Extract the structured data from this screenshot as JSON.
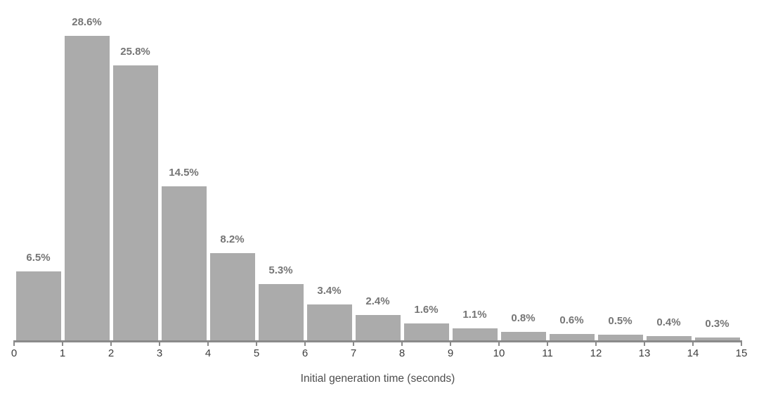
{
  "chart_data": {
    "type": "bar",
    "subtype": "histogram",
    "title": "",
    "xlabel": "Initial generation time (seconds)",
    "ylabel": "",
    "bin_edges": [
      0,
      1,
      2,
      3,
      4,
      5,
      6,
      7,
      8,
      9,
      10,
      11,
      12,
      13,
      14,
      15
    ],
    "categories": [
      "0-1",
      "1-2",
      "2-3",
      "3-4",
      "4-5",
      "5-6",
      "6-7",
      "7-8",
      "8-9",
      "9-10",
      "10-11",
      "11-12",
      "12-13",
      "13-14",
      "14-15"
    ],
    "values": [
      6.5,
      28.6,
      25.8,
      14.5,
      8.2,
      5.3,
      3.4,
      2.4,
      1.6,
      1.1,
      0.8,
      0.6,
      0.5,
      0.4,
      0.3
    ],
    "value_labels": [
      "6.5%",
      "28.6%",
      "25.8%",
      "14.5%",
      "8.2%",
      "5.3%",
      "3.4%",
      "2.4%",
      "1.6%",
      "1.1%",
      "0.8%",
      "0.6%",
      "0.5%",
      "0.4%",
      "0.3%"
    ],
    "x_tick_labels": [
      "0",
      "1",
      "2",
      "3",
      "4",
      "5",
      "6",
      "7",
      "8",
      "9",
      "10",
      "11",
      "12",
      "13",
      "14",
      "15"
    ],
    "xlim": [
      0,
      15
    ],
    "grid": false,
    "legend": false,
    "colors": {
      "bar": "#ababab",
      "value_label": "#757575",
      "axis": "#8a8a8a",
      "tick_label": "#3d3d3d",
      "axis_title": "#4d4d4d",
      "background": "#ffffff"
    }
  }
}
